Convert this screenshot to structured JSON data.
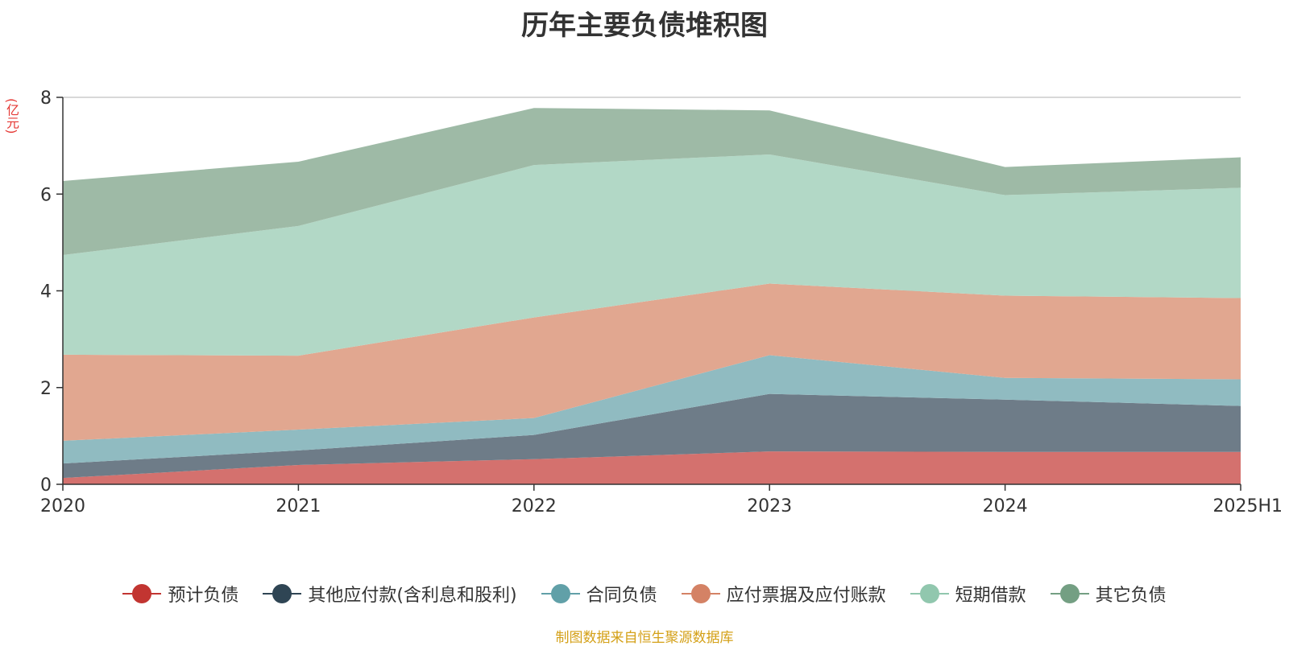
{
  "chart_data": {
    "type": "area",
    "stacked": true,
    "title": "历年主要负债堆积图",
    "unit_label": "(亿元)",
    "x": [
      "2020",
      "2021",
      "2022",
      "2023",
      "2024",
      "2025H1"
    ],
    "ylim": [
      0,
      8
    ],
    "yticks": [
      "0",
      "2",
      "4",
      "6",
      "8"
    ],
    "grid": true,
    "legend_position": "bottom",
    "series": [
      {
        "name": "预计负债",
        "color": "#c23531",
        "area_color": "#d4716e",
        "values": [
          0.13,
          0.4,
          0.52,
          0.68,
          0.67,
          0.67
        ]
      },
      {
        "name": "其他应付款(含利息和股利)",
        "color": "#2f4554",
        "area_color": "#6e7c88",
        "values": [
          0.3,
          0.3,
          0.5,
          1.19,
          1.08,
          0.95
        ]
      },
      {
        "name": "合同负债",
        "color": "#61a0a8",
        "area_color": "#90bbc1",
        "values": [
          0.47,
          0.43,
          0.35,
          0.8,
          0.45,
          0.55
        ]
      },
      {
        "name": "应付票据及应付账款",
        "color": "#d48265",
        "area_color": "#e1a790",
        "values": [
          1.78,
          1.53,
          2.08,
          1.48,
          1.7,
          1.68
        ]
      },
      {
        "name": "短期借款",
        "color": "#91c7ae",
        "area_color": "#b2d8c6",
        "values": [
          2.06,
          2.68,
          3.15,
          2.67,
          2.08,
          2.28
        ]
      },
      {
        "name": "其它负债",
        "color": "#749f83",
        "area_color": "#9ebaa6",
        "values": [
          1.53,
          1.33,
          1.18,
          0.91,
          0.58,
          0.63
        ]
      }
    ]
  },
  "source_note": "制图数据来自恒生聚源数据库"
}
